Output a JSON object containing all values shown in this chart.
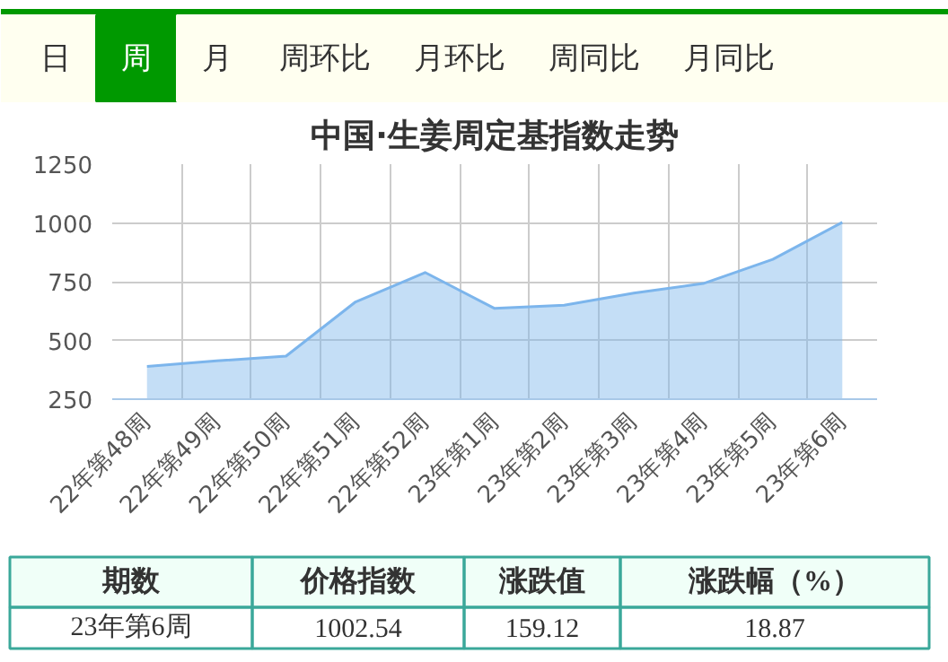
{
  "chart_data": [
    {
      "type": "other",
      "categories": [
        "日",
        "周",
        "月",
        "周环比",
        "月环比",
        "周同比",
        "月同比"
      ],
      "colors": [
        "#fffff0",
        "#009900",
        "#fffff0",
        "#fffff0",
        "#fffff0",
        "#fffff0",
        "#fffff0"
      ]
    },
    {
      "type": "area",
      "title": "中国·生姜周定基指数走势",
      "categories": [
        "22年第48周",
        "22年第49周",
        "22年第50周",
        "22年第51周",
        "22年第52周",
        "23年第1周",
        "23年第2周",
        "23年第3周",
        "23年第4周",
        "23年第5周",
        "23年第6周"
      ],
      "series": [
        {
          "color": "#7cb5ec",
          "values": [
            389,
            413,
            433,
            664,
            789,
            636,
            650,
            701,
            742,
            845,
            1002.54
          ]
        }
      ],
      "ylim": [
        250,
        1250
      ],
      "yticks": [
        250,
        500,
        750,
        1000,
        1250
      ],
      "grid": true
    },
    {
      "type": "other",
      "categories": [
        "期数",
        "价格指数",
        "涨跌值",
        "涨跌幅（%）"
      ],
      "annotations": [
        "23年第6周",
        "1002.54",
        "159.12",
        "18.87"
      ]
    }
  ]
}
